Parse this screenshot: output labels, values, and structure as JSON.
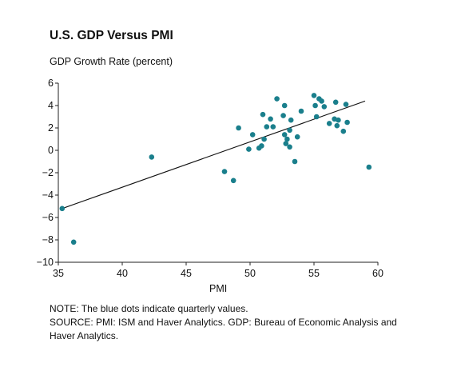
{
  "chart_data": {
    "type": "scatter",
    "title": "U.S. GDP Versus PMI",
    "ylabel": "GDP Growth Rate (percent)",
    "xlabel": "PMI",
    "xlim": [
      35,
      60
    ],
    "ylim": [
      -10,
      6
    ],
    "xticks": [
      35,
      40,
      45,
      50,
      55,
      60
    ],
    "yticks": [
      6,
      4,
      2,
      0,
      -2,
      -4,
      -6,
      -8,
      -10
    ],
    "ytick_labels": [
      "6",
      "4",
      "2",
      "0",
      "−2",
      "−4",
      "−6",
      "−8",
      "−10"
    ],
    "grid": false,
    "point_color": "#1a7f8c",
    "trendline": {
      "x": [
        35.3,
        59.0
      ],
      "y": [
        -5.2,
        4.4
      ]
    },
    "points": [
      {
        "x": 35.3,
        "y": -5.2
      },
      {
        "x": 36.2,
        "y": -8.2
      },
      {
        "x": 42.3,
        "y": -0.6
      },
      {
        "x": 48.0,
        "y": -1.9
      },
      {
        "x": 48.7,
        "y": -2.7
      },
      {
        "x": 49.1,
        "y": 2.0
      },
      {
        "x": 49.9,
        "y": 0.1
      },
      {
        "x": 50.2,
        "y": 1.4
      },
      {
        "x": 50.7,
        "y": 0.2
      },
      {
        "x": 50.9,
        "y": 0.4
      },
      {
        "x": 51.0,
        "y": 3.2
      },
      {
        "x": 51.1,
        "y": 1.0
      },
      {
        "x": 51.3,
        "y": 2.1
      },
      {
        "x": 51.6,
        "y": 2.8
      },
      {
        "x": 51.8,
        "y": 2.1
      },
      {
        "x": 52.1,
        "y": 4.6
      },
      {
        "x": 52.6,
        "y": 3.1
      },
      {
        "x": 52.7,
        "y": 4.0
      },
      {
        "x": 52.7,
        "y": 1.4
      },
      {
        "x": 52.8,
        "y": 0.6
      },
      {
        "x": 52.9,
        "y": 1.0
      },
      {
        "x": 53.1,
        "y": 1.8
      },
      {
        "x": 53.1,
        "y": 0.3
      },
      {
        "x": 53.2,
        "y": 2.7
      },
      {
        "x": 53.5,
        "y": -1.0
      },
      {
        "x": 53.7,
        "y": 1.2
      },
      {
        "x": 54.0,
        "y": 3.5
      },
      {
        "x": 55.0,
        "y": 4.9
      },
      {
        "x": 55.1,
        "y": 4.0
      },
      {
        "x": 55.2,
        "y": 3.0
      },
      {
        "x": 55.4,
        "y": 4.6
      },
      {
        "x": 55.6,
        "y": 4.4
      },
      {
        "x": 55.8,
        "y": 3.9
      },
      {
        "x": 56.2,
        "y": 2.4
      },
      {
        "x": 56.6,
        "y": 2.8
      },
      {
        "x": 56.7,
        "y": 4.3
      },
      {
        "x": 56.8,
        "y": 2.2
      },
      {
        "x": 56.9,
        "y": 2.7
      },
      {
        "x": 57.3,
        "y": 1.7
      },
      {
        "x": 57.5,
        "y": 4.1
      },
      {
        "x": 57.6,
        "y": 2.5
      },
      {
        "x": 59.3,
        "y": -1.5
      }
    ]
  },
  "notes": {
    "note": "NOTE: The blue dots indicate quarterly values.",
    "source": "SOURCE: PMI: ISM and Haver Analytics. GDP: Bureau of Economic Analysis and Haver Analytics."
  }
}
